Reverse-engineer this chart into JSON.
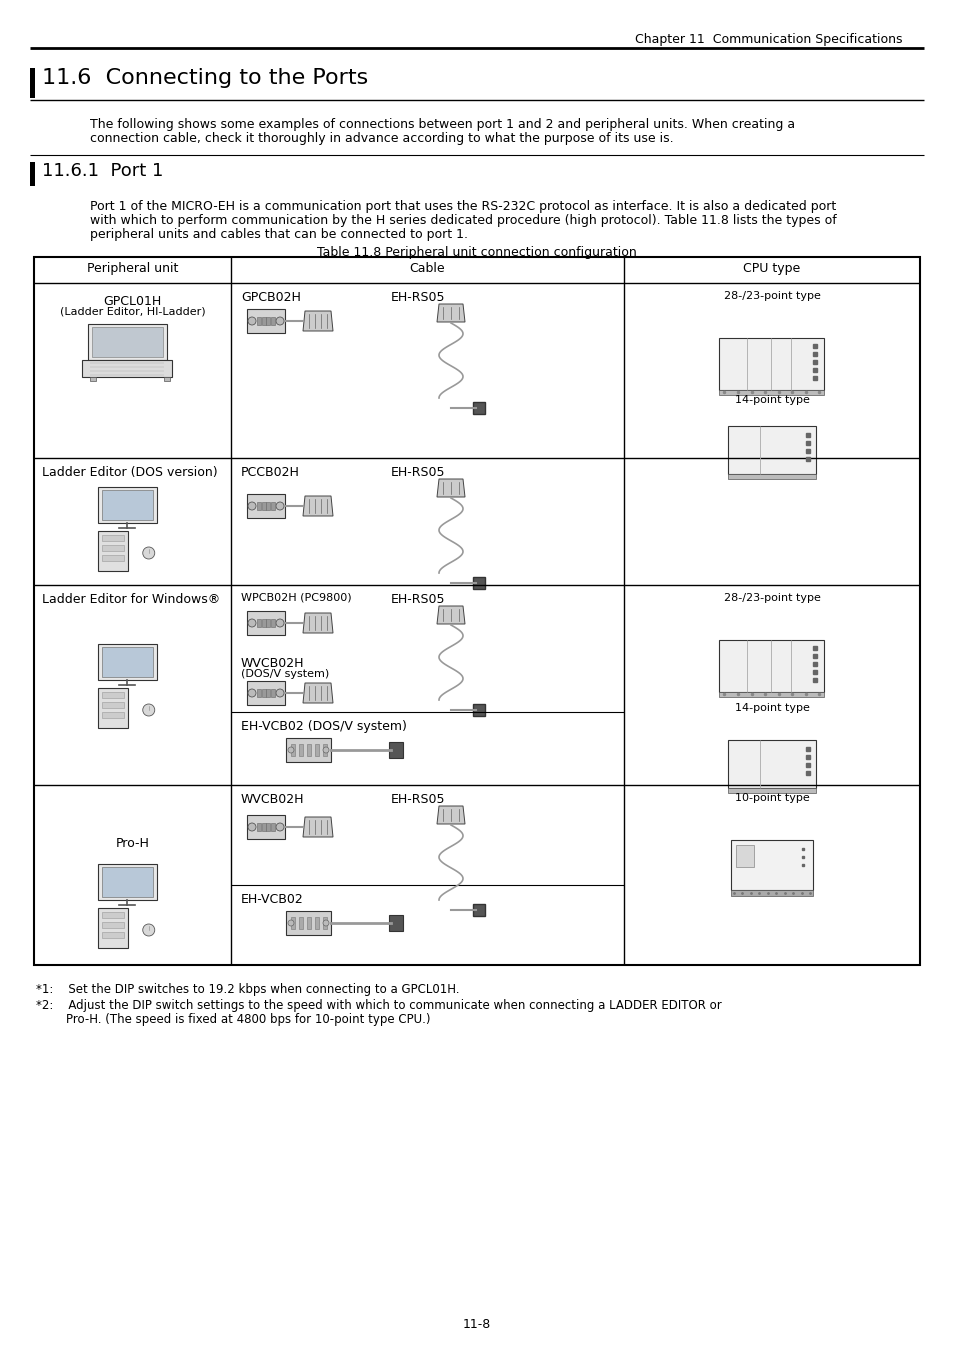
{
  "page_header": "Chapter 11  Communication Specifications",
  "section_title": "11.6  Connecting to the Ports",
  "intro_text1": "The following shows some examples of connections between port 1 and 2 and peripheral units. When creating a",
  "intro_text2": "connection cable, check it thoroughly in advance according to what the purpose of its use is.",
  "subsection_title": "11.6.1  Port 1",
  "subsection_text1": "Port 1 of the MICRO-EH is a communication port that uses the RS-232C protocol as interface. It is also a dedicated port",
  "subsection_text2": "with which to perform communication by the H series dedicated procedure (high protocol). Table 11.8 lists the types of",
  "subsection_text3": "peripheral units and cables that can be connected to port 1.",
  "table_title": "Table 11.8 Peripheral unit connection configuration",
  "col_headers": [
    "Peripheral unit",
    "Cable",
    "CPU type"
  ],
  "row1_periph": [
    "GPCL01H",
    "(Ladder Editor, HI-Ladder)"
  ],
  "row1_cable1": "GPCB02H",
  "row1_cable2": "EH-RS05",
  "row1_cpu1": "28-/23-point type",
  "row1_cpu2": "14-point type",
  "row2_periph": "Ladder Editor (DOS version)",
  "row2_cable1": "PCCB02H",
  "row2_cable2": "EH-RS05",
  "row3_periph": "Ladder Editor for Windows®",
  "row3_cable1": "WPCB02H (PC9800)",
  "row3_cable2": "EH-RS05",
  "row3_cable3": "WVCB02H",
  "row3_cable3b": "(DOS/V system)",
  "row3_cable4": "EH-VCB02 (DOS/V system)",
  "row3_cpu1": "28-/23-point type",
  "row3_cpu2": "14-point type",
  "row4_periph": "Pro-H",
  "row4_cable1": "WVCB02H",
  "row4_cable2": "EH-RS05",
  "row4_cable3": "EH-VCB02",
  "row4_cpu1": "10-point type",
  "footnote1": "*1:    Set the DIP switches to 19.2 kbps when connecting to a GPCL01H.",
  "footnote2a": "*2:    Adjust the DIP switch settings to the speed with which to communicate when connecting a LADDER EDITOR or",
  "footnote2b": "        Pro-H. (The speed is fixed at 4800 bps for 10-point type CPU.)",
  "page_number": "11-8",
  "bg": "#ffffff",
  "black": "#000000",
  "gray_light": "#e8e8e8",
  "gray_med": "#aaaaaa",
  "gray_dark": "#666666"
}
